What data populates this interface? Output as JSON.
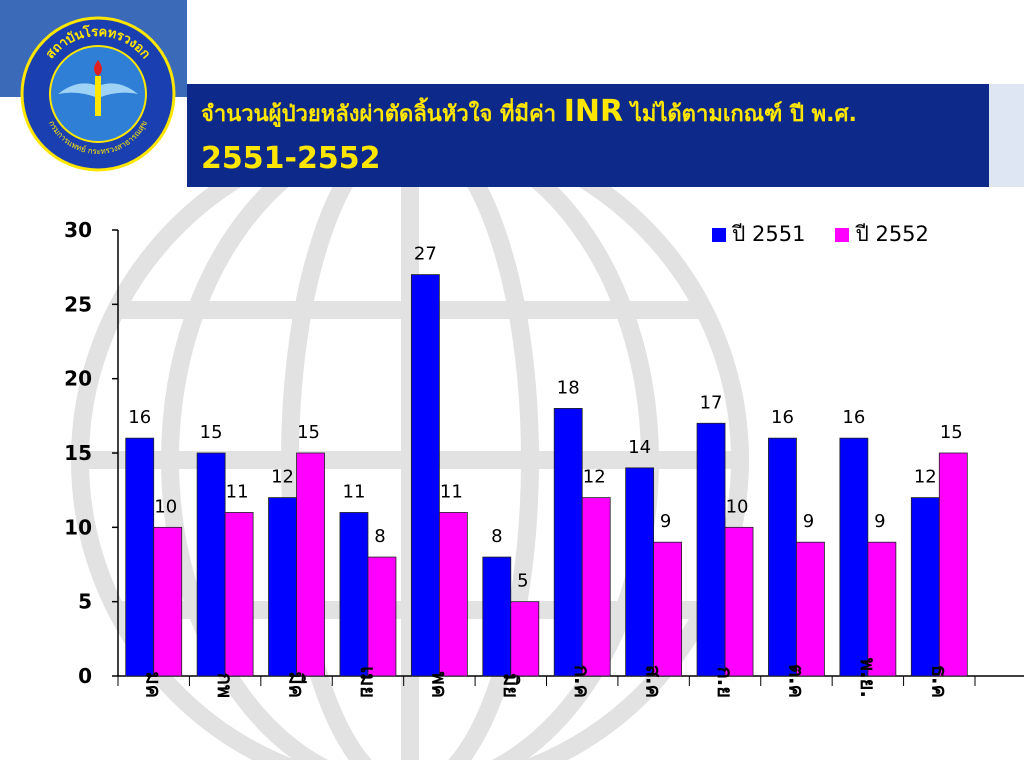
{
  "header": {
    "title_line1_part1": "จำนวนผู้ป่วยหลังผ่าตัดลิ้นหัวใจ ที่มีค่า ",
    "title_line1_inr": "INR",
    "title_line1_part2": " ไม่ได้ตามเกณฑ์ ปี พ.ศ.",
    "title_line2": "2551-2552"
  },
  "logo": {
    "top_text": "สถาบันโรคทรวงอก",
    "bottom_text": "กรมการแพทย์ กระทรวงสาธารณสุข",
    "colors": {
      "ring": "#1a3fb0",
      "inner": "#2f7fd6",
      "text": "#ffe600"
    }
  },
  "colors": {
    "series_2551": "#0000ff",
    "series_2552": "#ff00ff",
    "title_bg": "#0d2a8a",
    "title_text": "#ffe600",
    "corner": "#3a6ab8"
  },
  "chart_data": {
    "type": "bar",
    "categories": [
      "มค",
      "กพ",
      "มีค",
      "เมย",
      "พค",
      "มิย",
      "ก.ค",
      "ส.ค",
      "ก.ย",
      "ต.ค",
      "พ.ย.",
      "ธ.ค"
    ],
    "series": [
      {
        "name": "ปี 2551",
        "values": [
          16,
          15,
          12,
          11,
          27,
          8,
          18,
          14,
          17,
          16,
          16,
          12
        ]
      },
      {
        "name": "ปี 2552",
        "values": [
          10,
          11,
          15,
          8,
          11,
          5,
          12,
          9,
          10,
          9,
          9,
          15
        ]
      }
    ],
    "ylim": [
      0,
      30
    ],
    "yticks": [
      0,
      5,
      10,
      15,
      20,
      25,
      30
    ],
    "grid": false,
    "legend_position": "top-right",
    "data_labels": true,
    "xlabel_rotation": "vertical"
  }
}
